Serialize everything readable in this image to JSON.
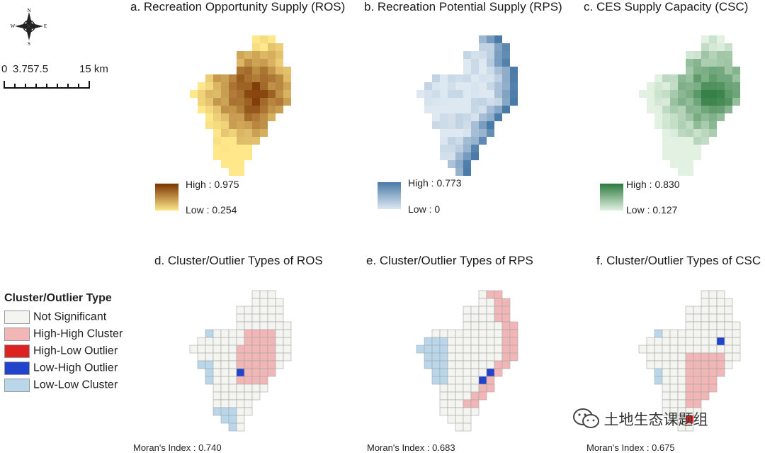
{
  "compass": {
    "n": "N",
    "s": "S",
    "e": "E",
    "w": "W"
  },
  "scale": {
    "label_0": "0",
    "label_mid": "3.757.5",
    "label_end": "15 km"
  },
  "panels": [
    {
      "id": "a",
      "title": "a. Recreation Opportunity Supply (ROS)",
      "high": "High : 0.975",
      "low": "Low : 0.254",
      "color_high": "#7a3300",
      "color_low": "#ffe78a"
    },
    {
      "id": "b",
      "title": "b. Recreation Potential Supply (RPS)",
      "high": "High : 0.773",
      "low": "Low : 0",
      "color_high": "#4a7aa8",
      "color_low": "#dde8f1"
    },
    {
      "id": "c",
      "title": "c. CES Supply Capacity (CSC)",
      "high": "High : 0.830",
      "low": "Low : 0.127",
      "color_high": "#2c7a3e",
      "color_low": "#e2f1e2"
    },
    {
      "id": "d",
      "title": "d. Cluster/Outlier Types of ROS",
      "moran": "Moran's Index : 0.740"
    },
    {
      "id": "e",
      "title": "e. Cluster/Outlier Types of RPS",
      "moran": "Moran's Index : 0.683"
    },
    {
      "id": "f",
      "title": "f. Cluster/Outlier Types of CSC",
      "moran": "Moran's Index : 0.675"
    }
  ],
  "cluster_legend": {
    "title": "Cluster/Outlier Type",
    "items": [
      {
        "label": "Not Significant",
        "color": "#f4f4f0"
      },
      {
        "label": "High-High Cluster",
        "color": "#f2b6b6"
      },
      {
        "label": "High-Low Outlier",
        "color": "#dd2222"
      },
      {
        "label": "Low-High Outlier",
        "color": "#2244cc"
      },
      {
        "label": "Low-Low Cluster",
        "color": "#b9d6ea"
      }
    ]
  },
  "watermark": "土地生态课题组"
}
